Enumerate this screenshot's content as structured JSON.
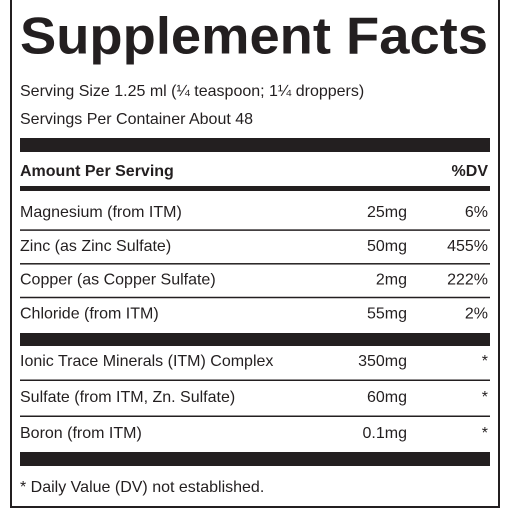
{
  "title": "Supplement Facts",
  "serving_size": "Serving Size 1.25 ml (¼ teaspoon; 1¼ droppers)",
  "servings_per_container": "Servings Per Container About 48",
  "table": {
    "header": {
      "amount": "Amount Per Serving",
      "dv": "%DV"
    },
    "sections": [
      [
        [
          "Magnesium (from ITM)",
          "25mg",
          "6%"
        ],
        [
          "Zinc (as Zinc Sulfate)",
          "50mg",
          "455%"
        ],
        [
          "Copper (as Copper Sulfate)",
          "2mg",
          "222%"
        ],
        [
          "Chloride (from ITM)",
          "55mg",
          "2%"
        ]
      ],
      [
        [
          "Ionic Trace Minerals (ITM) Complex",
          "350mg",
          "*"
        ],
        [
          "Sulfate (from ITM, Zn. Sulfate)",
          "60mg",
          "*"
        ],
        [
          "Boron (from ITM)",
          "0.1mg",
          "*"
        ]
      ]
    ]
  },
  "footnote": "* Daily Value (DV) not established."
}
